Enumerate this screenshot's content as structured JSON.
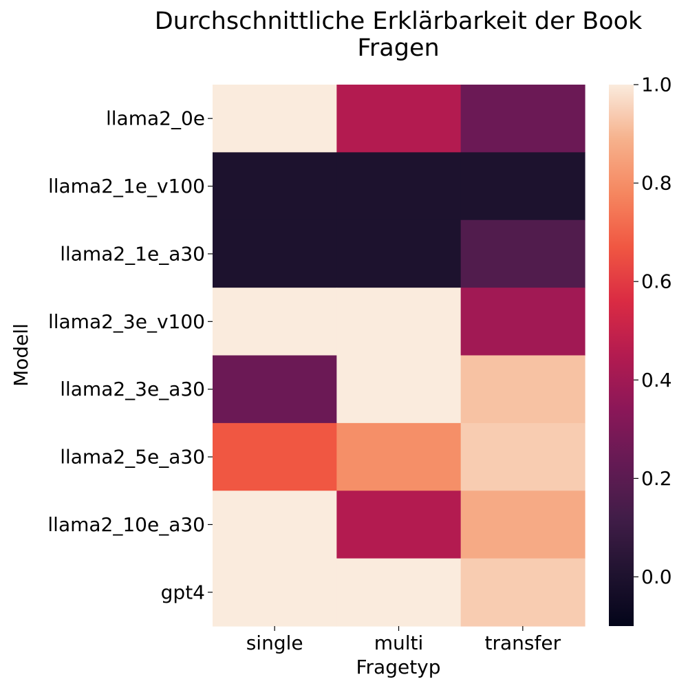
{
  "chart_data": {
    "type": "heatmap",
    "title": "Durchschnittliche Erklärbarkeit der Book Fragen",
    "title_lines": [
      "Durchschnittliche Erklärbarkeit der Book",
      "Fragen"
    ],
    "xlabel": "Fragetyp",
    "ylabel": "Modell",
    "x_categories": [
      "single",
      "multi",
      "transfer"
    ],
    "y_categories": [
      "llama2_0e",
      "llama2_1e_v100",
      "llama2_1e_a30",
      "llama2_3e_v100",
      "llama2_3e_a30",
      "llama2_5e_a30",
      "llama2_10e_a30",
      "gpt4"
    ],
    "values": [
      [
        1.0,
        0.45,
        0.25
      ],
      [
        0.0,
        0.0,
        0.0
      ],
      [
        0.0,
        0.0,
        0.17
      ],
      [
        1.0,
        1.0,
        0.4
      ],
      [
        0.25,
        1.0,
        0.92
      ],
      [
        0.67,
        0.8,
        0.94
      ],
      [
        1.0,
        0.45,
        0.87
      ],
      [
        1.0,
        1.0,
        0.94
      ]
    ],
    "colorbar": {
      "vmin": -0.1,
      "vmax": 1.0,
      "ticks": [
        0.0,
        0.2,
        0.4,
        0.6,
        0.8,
        1.0
      ],
      "tick_labels": [
        "0.0",
        "0.2",
        "0.4",
        "0.6",
        "0.8",
        "1.0"
      ],
      "colormap": "rocket"
    },
    "grid": false
  }
}
